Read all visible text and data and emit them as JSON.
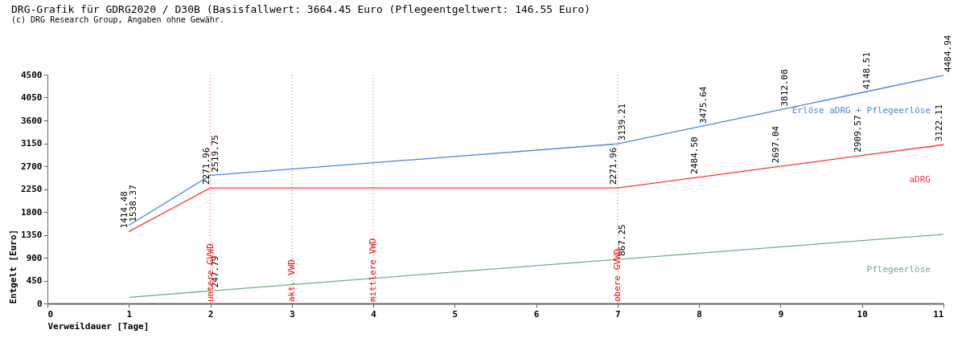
{
  "chart_data": {
    "type": "line",
    "title": "DRG-Grafik für GDRG2020 / D30B (Basisfallwert: 3664.45 Euro (Pflegeentgeltwert: 146.55 Euro)",
    "subtitle": "(c) DRG Research Group, Angaben ohne Gewähr.",
    "xlabel": "Verweildauer [Tage]",
    "ylabel": "Entgelt [Euro]",
    "x": [
      1,
      2,
      7,
      8,
      9,
      10,
      11
    ],
    "series": [
      {
        "name": "Erlöse aDRG + Pflegeerlöse",
        "color": "#4a86d8",
        "values": [
          1538.37,
          2519.75,
          3139.21,
          3475.64,
          3812.08,
          4148.51,
          4484.94
        ],
        "value_labels": [
          "1538.37",
          "2519.75",
          "3139.21",
          "3475.64",
          "3812.08",
          "4148.51",
          "4484.94"
        ]
      },
      {
        "name": "aDRG",
        "color": "#ff3333",
        "values": [
          1414.48,
          2271.96,
          2271.96,
          2484.5,
          2697.04,
          2909.57,
          3122.11
        ],
        "value_labels": [
          "1414.48",
          "2271.96",
          "2271.96",
          "2484.50",
          "2697.04",
          "2909.57",
          "3122.11"
        ]
      },
      {
        "name": "Pflegeerlöse",
        "color": "#6cb27f",
        "x": [
          1,
          2,
          7,
          11
        ],
        "values": [
          120,
          247.79,
          867.25,
          1360
        ],
        "value_labels": [
          null,
          "247.79",
          "867.25",
          null
        ]
      }
    ],
    "ref_lines": [
      {
        "axis": "x",
        "value": 2,
        "label": "untere GVWD",
        "color": "#ff0000",
        "line_style": "dotted"
      },
      {
        "axis": "x",
        "value": 3,
        "label": "akt. VWD",
        "color": "#ff0000",
        "line_style": "dotted"
      },
      {
        "axis": "x",
        "value": 4,
        "label": "mittlere VWD",
        "color": "#ff0000",
        "line_style": "dotted"
      },
      {
        "axis": "x",
        "value": 7,
        "label": "obere GVWD",
        "color": "#ff0000",
        "line_style": "dotted"
      }
    ],
    "xlim": [
      0,
      11
    ],
    "xticks": [
      0,
      1,
      2,
      3,
      4,
      5,
      6,
      7,
      8,
      9,
      10,
      11
    ],
    "ylim": [
      0,
      4500
    ],
    "yticks": [
      0,
      450,
      900,
      1350,
      1800,
      2250,
      2700,
      3150,
      3600,
      4050,
      4500
    ],
    "grid": false,
    "legend": false,
    "marker": "none",
    "line_style": "solid"
  }
}
